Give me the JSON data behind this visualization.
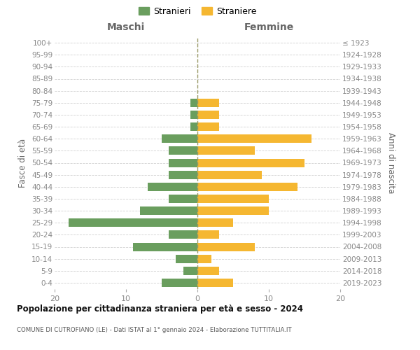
{
  "age_groups": [
    "0-4",
    "5-9",
    "10-14",
    "15-19",
    "20-24",
    "25-29",
    "30-34",
    "35-39",
    "40-44",
    "45-49",
    "50-54",
    "55-59",
    "60-64",
    "65-69",
    "70-74",
    "75-79",
    "80-84",
    "85-89",
    "90-94",
    "95-99",
    "100+"
  ],
  "birth_years": [
    "2019-2023",
    "2014-2018",
    "2009-2013",
    "2004-2008",
    "1999-2003",
    "1994-1998",
    "1989-1993",
    "1984-1988",
    "1979-1983",
    "1974-1978",
    "1969-1973",
    "1964-1968",
    "1959-1963",
    "1954-1958",
    "1949-1953",
    "1944-1948",
    "1939-1943",
    "1934-1938",
    "1929-1933",
    "1924-1928",
    "≤ 1923"
  ],
  "maschi": [
    5,
    2,
    3,
    9,
    4,
    18,
    8,
    4,
    7,
    4,
    4,
    4,
    5,
    1,
    1,
    1,
    0,
    0,
    0,
    0,
    0
  ],
  "femmine": [
    5,
    3,
    2,
    8,
    3,
    5,
    10,
    10,
    14,
    9,
    15,
    8,
    16,
    3,
    3,
    3,
    0,
    0,
    0,
    0,
    0
  ],
  "color_maschi": "#6a9e5e",
  "color_femmine": "#f5b731",
  "title": "Popolazione per cittadinanza straniera per età e sesso - 2024",
  "subtitle": "COMUNE DI CUTROFIANO (LE) - Dati ISTAT al 1° gennaio 2024 - Elaborazione TUTTITALIA.IT",
  "label_maschi": "Maschi",
  "label_femmine": "Femmine",
  "ylabel_left": "Fasce di età",
  "ylabel_right": "Anni di nascita",
  "xlim": 20,
  "legend_stranieri": "Stranieri",
  "legend_straniere": "Straniere",
  "bg_color": "#ffffff",
  "grid_color": "#d0d0d0"
}
